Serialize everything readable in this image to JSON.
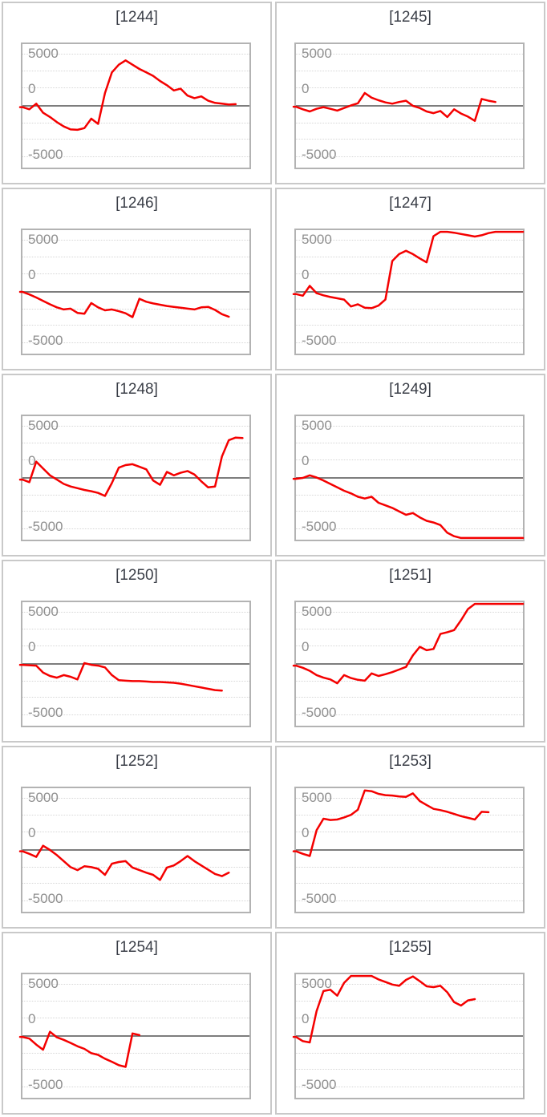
{
  "page": {
    "background": "#ffffff",
    "description_of_content": "Grid of 12 small line charts of cumulative win/loss per machine number"
  },
  "colors": {
    "line_color": "#f40000",
    "zero_line_color": "#7d7d7d",
    "grid_line_color": "#d6d6d6",
    "axis_label_color": "#8f8f8f",
    "title_color": "#3b3f48",
    "card_border_color": "#c9c9c9",
    "plot_border_color": "#b3b3b3"
  },
  "axis": {
    "tick_labels": [
      "5000",
      "0",
      "-5000"
    ],
    "tick_values": [
      5000,
      0,
      -5000
    ]
  },
  "chart_data": {
    "type": "line",
    "legend": "none",
    "grid": "dotted horizontal lines, solid dark line at 0",
    "ylim": [
      -7200,
      7200
    ],
    "y_ticks": [
      5000,
      0,
      -5000
    ],
    "x_slots": 34,
    "charts": [
      {
        "id": "1244",
        "title": "[1244]",
        "values": [
          -150,
          -400,
          250,
          -800,
          -1300,
          -1900,
          -2400,
          -2750,
          -2800,
          -2600,
          -1500,
          -2100,
          1500,
          3900,
          4800,
          5300,
          4800,
          4300,
          3900,
          3500,
          2900,
          2400,
          1800,
          2000,
          1200,
          900,
          1100,
          600,
          350,
          250,
          150,
          200
        ]
      },
      {
        "id": "1245",
        "title": "[1245]",
        "values": [
          -100,
          -400,
          -650,
          -350,
          -150,
          -350,
          -550,
          -250,
          50,
          300,
          1500,
          950,
          650,
          400,
          250,
          450,
          600,
          0,
          -250,
          -650,
          -850,
          -600,
          -1300,
          -400,
          -900,
          -1250,
          -1750,
          800,
          600,
          450
        ]
      },
      {
        "id": "1246",
        "title": "[1246]",
        "values": [
          0,
          -300,
          -650,
          -1050,
          -1450,
          -1800,
          -2050,
          -1950,
          -2450,
          -2550,
          -1300,
          -1800,
          -2150,
          -2050,
          -2250,
          -2500,
          -2950,
          -800,
          -1150,
          -1350,
          -1500,
          -1650,
          -1750,
          -1850,
          -1950,
          -2050,
          -1800,
          -1750,
          -2100,
          -2600,
          -2900
        ]
      },
      {
        "id": "1247",
        "title": "[1247]",
        "values": [
          -250,
          -450,
          700,
          -150,
          -400,
          -600,
          -750,
          -900,
          -1700,
          -1450,
          -1850,
          -1900,
          -1600,
          -900,
          3600,
          4400,
          4800,
          4400,
          3900,
          3450,
          6500,
          7000,
          7000,
          6900,
          6750,
          6600,
          6450,
          6600,
          6850,
          7000,
          7000,
          7000,
          7000,
          7000
        ]
      },
      {
        "id": "1248",
        "title": "[1248]",
        "values": [
          -200,
          -500,
          1900,
          1100,
          300,
          -200,
          -700,
          -1000,
          -1200,
          -1400,
          -1550,
          -1750,
          -2100,
          -600,
          1200,
          1500,
          1600,
          1300,
          1000,
          -300,
          -800,
          700,
          300,
          600,
          800,
          400,
          -400,
          -1100,
          -1000,
          2500,
          4400,
          4700,
          4650
        ]
      },
      {
        "id": "1249",
        "title": "[1249]",
        "values": [
          -100,
          0,
          300,
          50,
          -300,
          -700,
          -1100,
          -1500,
          -1800,
          -2200,
          -2400,
          -2200,
          -2900,
          -3200,
          -3500,
          -3900,
          -4300,
          -4100,
          -4600,
          -5000,
          -5200,
          -5500,
          -6400,
          -6800,
          -7000,
          -7000,
          -7000,
          -7000,
          -7000,
          -7000,
          -7000,
          -7000,
          -7000,
          -7000
        ]
      },
      {
        "id": "1250",
        "title": "[1250]",
        "values": [
          -100,
          -150,
          -200,
          -1000,
          -1400,
          -1600,
          -1300,
          -1500,
          -1800,
          100,
          -100,
          -200,
          -400,
          -1300,
          -1900,
          -1950,
          -2000,
          -2000,
          -2050,
          -2100,
          -2100,
          -2150,
          -2200,
          -2300,
          -2450,
          -2600,
          -2750,
          -2900,
          -3050,
          -3100
        ]
      },
      {
        "id": "1251",
        "title": "[1251]",
        "values": [
          -200,
          -450,
          -800,
          -1300,
          -1600,
          -1800,
          -2250,
          -1300,
          -1650,
          -1850,
          -1950,
          -1100,
          -1400,
          -1200,
          -950,
          -650,
          -350,
          1000,
          2000,
          1600,
          1750,
          3500,
          3700,
          3950,
          5100,
          6400,
          7000,
          7000,
          7000,
          7000,
          7000,
          7000,
          7000,
          7000
        ]
      },
      {
        "id": "1252",
        "title": "[1252]",
        "values": [
          -150,
          -450,
          -800,
          500,
          0,
          -600,
          -1300,
          -2000,
          -2350,
          -1900,
          -2000,
          -2200,
          -2900,
          -1600,
          -1400,
          -1300,
          -2050,
          -2350,
          -2650,
          -2900,
          -3500,
          -2050,
          -1800,
          -1300,
          -700,
          -1300,
          -1800,
          -2300,
          -2800,
          -3050,
          -2650
        ]
      },
      {
        "id": "1253",
        "title": "[1253]",
        "values": [
          -150,
          -450,
          -700,
          2300,
          3650,
          3500,
          3550,
          3800,
          4100,
          4700,
          6950,
          6850,
          6550,
          6400,
          6350,
          6250,
          6200,
          6600,
          5700,
          5250,
          4800,
          4650,
          4450,
          4200,
          3950,
          3750,
          3550,
          4450,
          4400
        ]
      },
      {
        "id": "1254",
        "title": "[1254]",
        "values": [
          -100,
          -300,
          -1000,
          -1600,
          500,
          -150,
          -450,
          -800,
          -1200,
          -1500,
          -2000,
          -2200,
          -2650,
          -3000,
          -3400,
          -3600,
          300,
          100
        ]
      },
      {
        "id": "1255",
        "title": "[1255]",
        "values": [
          -100,
          -600,
          -750,
          2900,
          5250,
          5400,
          4700,
          6200,
          7000,
          7000,
          7000,
          7000,
          6600,
          6300,
          6000,
          5850,
          6550,
          6950,
          6400,
          5800,
          5700,
          5850,
          5100,
          3950,
          3550,
          4150,
          4300
        ]
      }
    ]
  }
}
